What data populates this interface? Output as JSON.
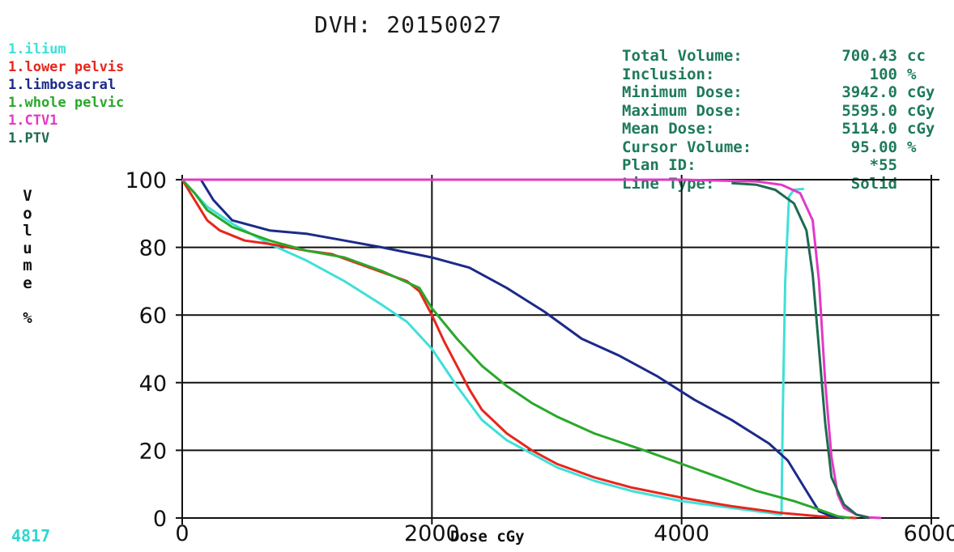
{
  "title": "DVH: 20150027",
  "legend": [
    {
      "label": "1.ilium",
      "color": "#3fe0d8"
    },
    {
      "label": "1.lower pelvis",
      "color": "#e8261c"
    },
    {
      "label": "1.limbosacral",
      "color": "#1c2a8a"
    },
    {
      "label": "1.whole pelvic",
      "color": "#2aa82a"
    },
    {
      "label": "1.CTV1",
      "color": "#e23ac6"
    },
    {
      "label": "1.PTV",
      "color": "#1d6b4f"
    }
  ],
  "stats": [
    {
      "label": "Total Volume:",
      "value": "700.43",
      "unit": "cc"
    },
    {
      "label": "Inclusion:",
      "value": "100",
      "unit": "%"
    },
    {
      "label": "Minimum Dose:",
      "value": "3942.0",
      "unit": "cGy"
    },
    {
      "label": "Maximum Dose:",
      "value": "5595.0",
      "unit": "cGy"
    },
    {
      "label": "Mean Dose:",
      "value": "5114.0",
      "unit": "cGy"
    },
    {
      "label": "Cursor Volume:",
      "value": "95.00",
      "unit": "%"
    },
    {
      "label": "Plan ID:",
      "value": "*55",
      "unit": ""
    },
    {
      "label": "Line Type:",
      "value": "Solid",
      "unit": ""
    }
  ],
  "ylabel_chars": [
    "V",
    "o",
    "l",
    "u",
    "m",
    "e",
    "",
    "%"
  ],
  "corner_text": "4817",
  "chart_data": {
    "type": "line",
    "title": "DVH: 20150027",
    "xlabel": "Dose cGy",
    "ylabel": "Volume %",
    "xlim": [
      0,
      6000
    ],
    "ylim": [
      0,
      100
    ],
    "xticks": [
      0,
      2000,
      4000,
      6000
    ],
    "yticks": [
      0,
      20,
      40,
      60,
      80,
      100
    ],
    "grid": true,
    "legend_position": "top-left",
    "series": [
      {
        "name": "1.ilium",
        "color": "#3fe0d8",
        "points": [
          [
            0,
            100
          ],
          [
            100,
            96
          ],
          [
            200,
            92
          ],
          [
            400,
            87
          ],
          [
            700,
            81
          ],
          [
            1000,
            76
          ],
          [
            1300,
            70
          ],
          [
            1600,
            63
          ],
          [
            1800,
            58
          ],
          [
            2000,
            50
          ],
          [
            2200,
            39
          ],
          [
            2400,
            29
          ],
          [
            2600,
            23
          ],
          [
            2800,
            19
          ],
          [
            3000,
            15
          ],
          [
            3300,
            11
          ],
          [
            3600,
            8
          ],
          [
            4000,
            5
          ],
          [
            4400,
            3
          ],
          [
            4700,
            1.5
          ],
          [
            4800,
            1
          ],
          [
            4810,
            30
          ],
          [
            4830,
            70
          ],
          [
            4860,
            95
          ],
          [
            4900,
            97
          ],
          [
            4980,
            97.3
          ]
        ]
      },
      {
        "name": "1.lower pelvis",
        "color": "#e8261c",
        "points": [
          [
            0,
            100
          ],
          [
            100,
            94
          ],
          [
            200,
            88
          ],
          [
            300,
            85
          ],
          [
            500,
            82
          ],
          [
            700,
            81
          ],
          [
            1000,
            79
          ],
          [
            1200,
            78
          ],
          [
            1500,
            74
          ],
          [
            1800,
            70
          ],
          [
            1900,
            67
          ],
          [
            2000,
            60
          ],
          [
            2100,
            52
          ],
          [
            2200,
            45
          ],
          [
            2300,
            38
          ],
          [
            2400,
            32
          ],
          [
            2600,
            25
          ],
          [
            2800,
            20
          ],
          [
            3000,
            16
          ],
          [
            3300,
            12
          ],
          [
            3600,
            9
          ],
          [
            4000,
            6
          ],
          [
            4400,
            3.5
          ],
          [
            4800,
            1.5
          ],
          [
            5100,
            0.5
          ],
          [
            5400,
            0
          ]
        ]
      },
      {
        "name": "1.limbosacral",
        "color": "#1c2a8a",
        "points": [
          [
            0,
            100
          ],
          [
            150,
            100
          ],
          [
            250,
            94
          ],
          [
            400,
            88
          ],
          [
            700,
            85
          ],
          [
            1000,
            84
          ],
          [
            1300,
            82
          ],
          [
            1600,
            80
          ],
          [
            2000,
            77
          ],
          [
            2300,
            74
          ],
          [
            2600,
            68
          ],
          [
            2900,
            61
          ],
          [
            3200,
            53
          ],
          [
            3500,
            48
          ],
          [
            3800,
            42
          ],
          [
            4100,
            35
          ],
          [
            4400,
            29
          ],
          [
            4700,
            22
          ],
          [
            4850,
            17
          ],
          [
            5000,
            8
          ],
          [
            5100,
            2
          ],
          [
            5200,
            0.5
          ],
          [
            5300,
            0
          ]
        ]
      },
      {
        "name": "1.whole pelvic",
        "color": "#2aa82a",
        "points": [
          [
            0,
            100
          ],
          [
            100,
            96
          ],
          [
            200,
            91
          ],
          [
            400,
            86
          ],
          [
            700,
            82
          ],
          [
            1000,
            79
          ],
          [
            1300,
            77
          ],
          [
            1600,
            73
          ],
          [
            1900,
            68
          ],
          [
            2000,
            62
          ],
          [
            2200,
            53
          ],
          [
            2400,
            45
          ],
          [
            2600,
            39
          ],
          [
            2800,
            34
          ],
          [
            3000,
            30
          ],
          [
            3300,
            25
          ],
          [
            3700,
            20
          ],
          [
            4000,
            16
          ],
          [
            4300,
            12
          ],
          [
            4600,
            8
          ],
          [
            4900,
            5
          ],
          [
            5100,
            2.5
          ],
          [
            5250,
            0.5
          ],
          [
            5350,
            0
          ]
        ]
      },
      {
        "name": "1.CTV1",
        "color": "#e23ac6",
        "points": [
          [
            0,
            100
          ],
          [
            4000,
            100
          ],
          [
            4600,
            99.5
          ],
          [
            4800,
            98.5
          ],
          [
            4950,
            96
          ],
          [
            5050,
            88
          ],
          [
            5100,
            70
          ],
          [
            5150,
            40
          ],
          [
            5200,
            18
          ],
          [
            5250,
            7
          ],
          [
            5300,
            3
          ],
          [
            5400,
            1
          ],
          [
            5500,
            0.2
          ],
          [
            5600,
            0
          ]
        ]
      },
      {
        "name": "1.PTV",
        "color": "#1d6b4f",
        "points": [
          [
            4400,
            99
          ],
          [
            4600,
            98.5
          ],
          [
            4750,
            97
          ],
          [
            4900,
            93
          ],
          [
            5000,
            85
          ],
          [
            5050,
            72
          ],
          [
            5100,
            50
          ],
          [
            5150,
            28
          ],
          [
            5200,
            12
          ],
          [
            5300,
            4
          ],
          [
            5400,
            1
          ],
          [
            5500,
            0
          ]
        ]
      }
    ]
  }
}
